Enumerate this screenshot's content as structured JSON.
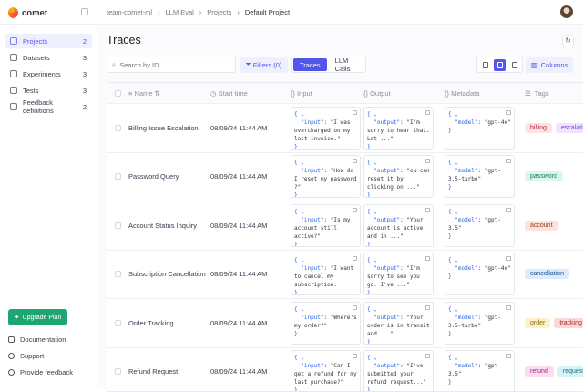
{
  "brand": "comet",
  "sidebar": {
    "items": [
      {
        "label": "Projects",
        "count": "2",
        "icon": "grid-icon",
        "active": true
      },
      {
        "label": "Datasets",
        "count": "3",
        "icon": "database-icon"
      },
      {
        "label": "Experiments",
        "count": "3",
        "icon": "flask-icon"
      },
      {
        "label": "Tests",
        "count": "3",
        "icon": "tests-icon"
      },
      {
        "label": "Feedback definitions",
        "count": "2",
        "icon": "message-icon"
      }
    ],
    "upgrade": "Upgrade Plan",
    "documentation": "Documentation",
    "support": "Support",
    "feedback": "Provide feedback"
  },
  "breadcrumb": [
    "team-comet-ml",
    "LLM Eval",
    "Projects",
    "Default Project"
  ],
  "page_title": "Traces",
  "toolbar": {
    "search_placeholder": "Search by ID",
    "filters": "Filters (0)",
    "traces": "Traces",
    "llm_calls": "LLM Calls",
    "columns": "Columns"
  },
  "columns": [
    "Name",
    "Start time",
    "Input",
    "Output",
    "Metadata",
    "Tags"
  ],
  "rows": [
    {
      "name": "Billing Issue Escalation",
      "time": "08/09/24 11:44 AM",
      "input": "\"I was overcharged on my last invoice.\"",
      "output": "\"I'm sorry to hear that. Let ...\"",
      "model": "\"gpt-4o\"",
      "tags": [
        {
          "t": "billing",
          "bg": "#fde2e7",
          "fg": "#b4233f"
        },
        {
          "t": "escalation",
          "bg": "#efe3fd",
          "fg": "#7c3aed"
        }
      ]
    },
    {
      "name": "Password Query",
      "time": "08/09/24 11:44 AM",
      "input": "\"How do I reset my password ?\"",
      "output": "\"ou can reset it by clicking on ...\"",
      "model": "\"gpt-3.5-turbo\"",
      "tags": [
        {
          "t": "password",
          "bg": "#d9f7ea",
          "fg": "#137a52"
        }
      ]
    },
    {
      "name": "Account Status Inquiry",
      "time": "08/09/24 11:44 AM",
      "input": "\"Is my account still active?\"",
      "output": "\"Your account is active and in ...\"",
      "model": "\"gpt-3.5\"",
      "tags": [
        {
          "t": "account",
          "bg": "#fde4da",
          "fg": "#9a3b1a"
        }
      ]
    },
    {
      "name": "Subscription Cancellation",
      "time": "08/09/24 11:44 AM",
      "input": "\"I want to cancel my subscription.",
      "output": "\"I'm sorry to see you go. I've ...\"",
      "model": "\"gpt-4o\"",
      "tags": [
        {
          "t": "cancellation",
          "bg": "#dcebfd",
          "fg": "#1e4f8f"
        }
      ]
    },
    {
      "name": "Order Tracking",
      "time": "08/09/24 11:44 AM",
      "input": "\"Where's my order?\"",
      "output": "\"Your order is in transit and ...\"",
      "model": "\"gpt-3.5-turbo\"",
      "tags": [
        {
          "t": "order",
          "bg": "#fdf1c9",
          "fg": "#8a6300"
        },
        {
          "t": "tracking",
          "bg": "#fcd9d9",
          "fg": "#a12828"
        }
      ]
    },
    {
      "name": "Refund Request",
      "time": "08/09/24 11:44 AM",
      "input": "\"Can I get a refund for my last purchase?\"",
      "output": "\"I've submitted your refund request...\"",
      "model": "\"gpt-3.5\"",
      "tags": [
        {
          "t": "refund",
          "bg": "#fbdcf1",
          "fg": "#9d2476"
        },
        {
          "t": "request",
          "bg": "#d4f5f7",
          "fg": "#15727a"
        }
      ]
    }
  ],
  "colors": {
    "accent": "#5155e8",
    "upgrade": "#1ea672"
  }
}
